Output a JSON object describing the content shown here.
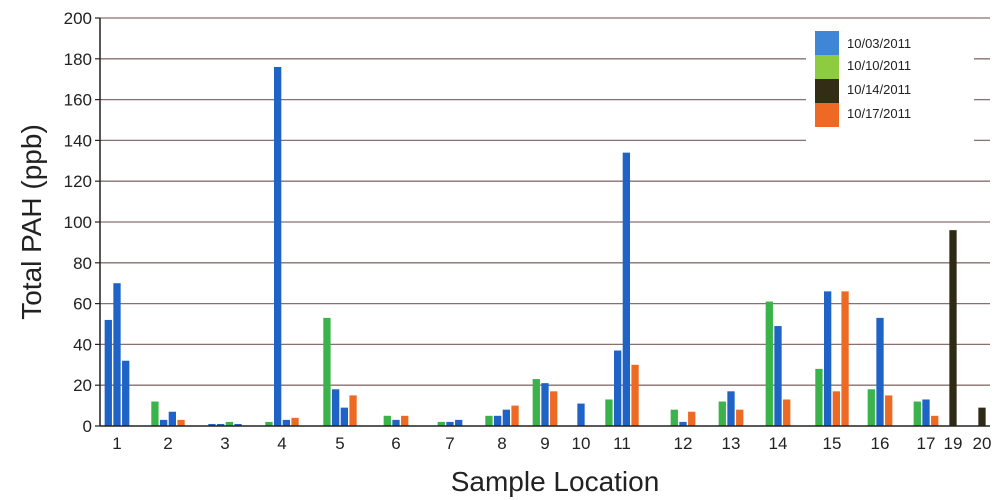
{
  "chart_data": {
    "type": "bar",
    "xlabel": "Sample Location",
    "ylabel": "Total PAH (ppb)",
    "ylim": [
      0,
      200
    ],
    "yticks": [
      0,
      20,
      40,
      60,
      80,
      100,
      120,
      140,
      160,
      180,
      200
    ],
    "grid": "horizontal",
    "legend_position": "top-right",
    "colors": {
      "blue": "#1f63c6",
      "green": "#3ab34a",
      "dark": "#2f2a14",
      "orange": "#ee6a24",
      "legend_blue": "#3f86d6",
      "legend_green": "#8ccc3e",
      "legend_dark": "#332d15",
      "legend_orange": "#ee6a24",
      "grid": "#8a6f6f",
      "axis": "#222222"
    },
    "legend": [
      {
        "label": "10/03/2011",
        "color": "#3f86d6"
      },
      {
        "label": "10/10/2011",
        "color": "#8ccc3e"
      },
      {
        "label": "10/14/2011",
        "color": "#332d15"
      },
      {
        "label": "10/17/2011",
        "color": "#ee6a24"
      }
    ],
    "categories": [
      "1",
      "2",
      "3",
      "4",
      "5",
      "6",
      "7",
      "8",
      "9",
      "10",
      "11",
      "12",
      "13",
      "14",
      "15",
      "16",
      "17",
      "19",
      "20"
    ],
    "groups": [
      {
        "category": "1",
        "bars": [
          {
            "color": "blue",
            "value": 52
          },
          {
            "color": "blue",
            "value": 70
          },
          {
            "color": "blue",
            "value": 32
          }
        ]
      },
      {
        "category": "2",
        "bars": [
          {
            "color": "green",
            "value": 12
          },
          {
            "color": "blue",
            "value": 3
          },
          {
            "color": "blue",
            "value": 7
          },
          {
            "color": "orange",
            "value": 3
          }
        ]
      },
      {
        "category": "3",
        "bars": [
          {
            "color": "blue",
            "value": 1
          },
          {
            "color": "blue",
            "value": 1
          },
          {
            "color": "green",
            "value": 2
          },
          {
            "color": "blue",
            "value": 1
          }
        ]
      },
      {
        "category": "4",
        "bars": [
          {
            "color": "green",
            "value": 2
          },
          {
            "color": "blue",
            "value": 176
          },
          {
            "color": "blue",
            "value": 3
          },
          {
            "color": "orange",
            "value": 4
          }
        ]
      },
      {
        "category": "5",
        "bars": [
          {
            "color": "green",
            "value": 53
          },
          {
            "color": "blue",
            "value": 18
          },
          {
            "color": "blue",
            "value": 9
          },
          {
            "color": "orange",
            "value": 15
          }
        ]
      },
      {
        "category": "6",
        "bars": [
          {
            "color": "green",
            "value": 5
          },
          {
            "color": "blue",
            "value": 3
          },
          {
            "color": "orange",
            "value": 5
          }
        ]
      },
      {
        "category": "7",
        "bars": [
          {
            "color": "green",
            "value": 2
          },
          {
            "color": "blue",
            "value": 2
          },
          {
            "color": "blue",
            "value": 3
          }
        ]
      },
      {
        "category": "8",
        "bars": [
          {
            "color": "green",
            "value": 5
          },
          {
            "color": "blue",
            "value": 5
          },
          {
            "color": "blue",
            "value": 8
          },
          {
            "color": "orange",
            "value": 10
          }
        ]
      },
      {
        "category": "9",
        "bars": [
          {
            "color": "green",
            "value": 23
          },
          {
            "color": "blue",
            "value": 21
          },
          {
            "color": "orange",
            "value": 17
          }
        ]
      },
      {
        "category": "10",
        "bars": [
          {
            "color": "blue",
            "value": 11
          }
        ]
      },
      {
        "category": "11",
        "bars": [
          {
            "color": "green",
            "value": 13
          },
          {
            "color": "blue",
            "value": 37
          },
          {
            "color": "blue",
            "value": 134
          },
          {
            "color": "orange",
            "value": 30
          }
        ]
      },
      {
        "category": "12",
        "bars": [
          {
            "color": "green",
            "value": 8
          },
          {
            "color": "blue",
            "value": 2
          },
          {
            "color": "orange",
            "value": 7
          }
        ]
      },
      {
        "category": "13",
        "bars": [
          {
            "color": "green",
            "value": 12
          },
          {
            "color": "blue",
            "value": 17
          },
          {
            "color": "orange",
            "value": 8
          }
        ]
      },
      {
        "category": "14",
        "bars": [
          {
            "color": "green",
            "value": 61
          },
          {
            "color": "blue",
            "value": 49
          },
          {
            "color": "orange",
            "value": 13
          }
        ]
      },
      {
        "category": "15",
        "bars": [
          {
            "color": "green",
            "value": 28
          },
          {
            "color": "blue",
            "value": 66
          },
          {
            "color": "orange",
            "value": 17
          },
          {
            "color": "orange",
            "value": 66
          }
        ]
      },
      {
        "category": "16",
        "bars": [
          {
            "color": "green",
            "value": 18
          },
          {
            "color": "blue",
            "value": 53
          },
          {
            "color": "orange",
            "value": 15
          }
        ]
      },
      {
        "category": "17",
        "bars": [
          {
            "color": "green",
            "value": 12
          },
          {
            "color": "blue",
            "value": 13
          },
          {
            "color": "orange",
            "value": 5
          }
        ]
      },
      {
        "category": "19",
        "bars": [
          {
            "color": "dark",
            "value": 96
          }
        ]
      },
      {
        "category": "20",
        "bars": [
          {
            "color": "dark",
            "value": 9
          }
        ]
      }
    ]
  }
}
